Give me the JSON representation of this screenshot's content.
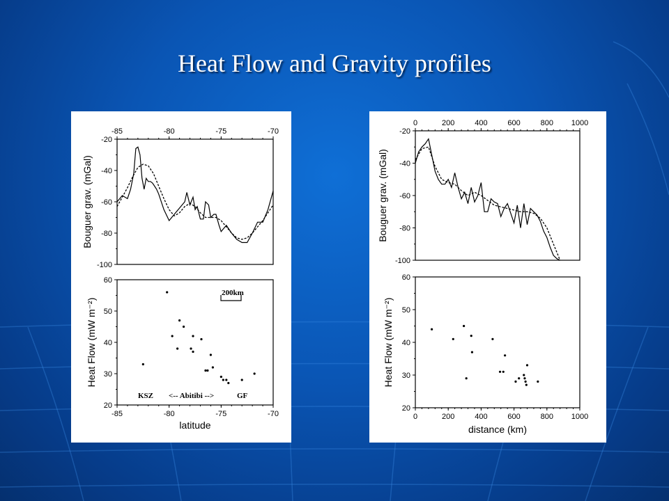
{
  "slide": {
    "title": "Heat Flow and Gravity profiles"
  },
  "colors": {
    "bg": "#0a55b4",
    "title": "#ffffff",
    "ink": "#000000"
  },
  "chart_data": [
    {
      "type": "line",
      "panel": "left-top",
      "ylabel": "Bouguer grav. (mGal)",
      "xlim": [
        -85,
        -70
      ],
      "ylim": [
        -100,
        -20
      ],
      "xticks": [
        "-85",
        "-80",
        "-75",
        "-70"
      ],
      "yticks": [
        "-20",
        "-40",
        "-60",
        "-80",
        "-100"
      ],
      "series": [
        {
          "style": "solid",
          "x": [
            -85,
            -84.5,
            -84.0,
            -83.7,
            -83.4,
            -83.2,
            -83.0,
            -82.8,
            -82.6,
            -82.4,
            -82.2,
            -82.0,
            -81.8,
            -81.6,
            -81.4,
            -81.2,
            -81.0,
            -80.5,
            -80.0,
            -79.5,
            -79.0,
            -78.5,
            -78.3,
            -78.0,
            -77.7,
            -77.5,
            -77.3,
            -77.0,
            -76.7,
            -76.5,
            -76.2,
            -76.0,
            -75.7,
            -75.5,
            -75.2,
            -75.0,
            -74.5,
            -74.0,
            -73.5,
            -73.0,
            -72.5,
            -72.0,
            -71.5,
            -71.0,
            -70.5,
            -70.0
          ],
          "y": [
            -60,
            -56,
            -58,
            -52,
            -42,
            -26,
            -25,
            -30,
            -45,
            -52,
            -45,
            -47,
            -47,
            -48,
            -50,
            -52,
            -55,
            -65,
            -72,
            -68,
            -64,
            -60,
            -54,
            -62,
            -57,
            -65,
            -63,
            -71,
            -71,
            -60,
            -62,
            -70,
            -68,
            -68,
            -75,
            -79,
            -75,
            -80,
            -84,
            -86,
            -86,
            -80,
            -73,
            -73,
            -65,
            -53
          ]
        },
        {
          "style": "dashed",
          "x": [
            -85,
            -84.5,
            -84.0,
            -83.5,
            -83.0,
            -82.5,
            -82.0,
            -81.5,
            -81.0,
            -80.5,
            -80.0,
            -79.5,
            -79.0,
            -78.5,
            -78.0,
            -77.5,
            -77.0,
            -76.5,
            -76.0,
            -75.5,
            -75.0,
            -74.5,
            -74.0,
            -73.5,
            -73.0,
            -72.5,
            -72.0,
            -71.5,
            -71.0,
            -70.5,
            -70.0
          ],
          "y": [
            -63,
            -57,
            -51,
            -44,
            -38,
            -36,
            -37,
            -42,
            -50,
            -58,
            -65,
            -69,
            -67,
            -63,
            -61,
            -63,
            -67,
            -70,
            -70,
            -70,
            -72,
            -76,
            -80,
            -83,
            -84,
            -83,
            -80,
            -76,
            -72,
            -67,
            -62
          ]
        }
      ]
    },
    {
      "type": "scatter",
      "panel": "left-bottom",
      "ylabel": "Heat Flow (mW m⁻²)",
      "xlabel": "latitude",
      "xlim": [
        -85,
        -70
      ],
      "ylim": [
        20,
        60
      ],
      "xticks": [
        "-85",
        "-80",
        "-75",
        "-70"
      ],
      "yticks": [
        "60",
        "50",
        "40",
        "30",
        "20"
      ],
      "scalebar": {
        "label": "200km"
      },
      "annotations": [
        {
          "text": "KSZ"
        },
        {
          "text": "<-- Abitibi -->"
        },
        {
          "text": "GF"
        }
      ],
      "points": [
        [
          -82.5,
          33
        ],
        [
          -80.2,
          56
        ],
        [
          -79.7,
          42
        ],
        [
          -79.2,
          38
        ],
        [
          -79.0,
          47
        ],
        [
          -78.6,
          45
        ],
        [
          -77.9,
          38
        ],
        [
          -77.7,
          37
        ],
        [
          -77.7,
          42
        ],
        [
          -76.9,
          41
        ],
        [
          -76.5,
          31
        ],
        [
          -76.3,
          31
        ],
        [
          -76.0,
          36
        ],
        [
          -75.8,
          32
        ],
        [
          -75.0,
          29
        ],
        [
          -74.8,
          28
        ],
        [
          -74.5,
          28
        ],
        [
          -74.3,
          27
        ],
        [
          -73.0,
          28
        ],
        [
          -71.8,
          30
        ]
      ]
    },
    {
      "type": "line",
      "panel": "right-top",
      "ylabel": "Bouguer grav. (mGal)",
      "xlim": [
        0,
        1000
      ],
      "ylim": [
        -100,
        -20
      ],
      "xticks": [
        "0",
        "200",
        "400",
        "600",
        "800",
        "1000"
      ],
      "yticks": [
        "-20",
        "-40",
        "-60",
        "-80",
        "-100"
      ],
      "series": [
        {
          "style": "solid",
          "x": [
            0,
            20,
            40,
            60,
            80,
            100,
            120,
            140,
            160,
            180,
            200,
            220,
            240,
            260,
            280,
            300,
            320,
            340,
            360,
            380,
            400,
            420,
            440,
            460,
            480,
            500,
            520,
            540,
            560,
            580,
            600,
            620,
            640,
            660,
            680,
            700,
            720,
            740,
            760,
            780,
            800,
            820,
            840,
            860,
            880
          ],
          "y": [
            -40,
            -33,
            -30,
            -28,
            -25,
            -35,
            -45,
            -50,
            -53,
            -53,
            -50,
            -55,
            -46,
            -55,
            -62,
            -58,
            -65,
            -55,
            -64,
            -60,
            -52,
            -70,
            -70,
            -62,
            -64,
            -65,
            -73,
            -68,
            -65,
            -71,
            -77,
            -66,
            -80,
            -65,
            -78,
            -68,
            -70,
            -72,
            -76,
            -82,
            -86,
            -92,
            -97,
            -99,
            -100
          ]
        },
        {
          "style": "dashed",
          "x": [
            0,
            40,
            80,
            120,
            160,
            200,
            240,
            280,
            320,
            360,
            400,
            440,
            480,
            520,
            560,
            600,
            640,
            680,
            720,
            760,
            800,
            840,
            880
          ],
          "y": [
            -38,
            -31,
            -30,
            -42,
            -50,
            -52,
            -53,
            -57,
            -60,
            -58,
            -60,
            -63,
            -66,
            -67,
            -68,
            -69,
            -70,
            -70,
            -71,
            -74,
            -80,
            -90,
            -100
          ]
        }
      ]
    },
    {
      "type": "scatter",
      "panel": "right-bottom",
      "ylabel": "Heat Flow (mW m⁻²)",
      "xlabel": "distance (km)",
      "xlim": [
        0,
        1000
      ],
      "ylim": [
        20,
        60
      ],
      "xticks": [
        "0",
        "200",
        "400",
        "600",
        "800",
        "1000"
      ],
      "yticks": [
        "20",
        "30",
        "40",
        "50",
        "60"
      ],
      "points": [
        [
          100,
          44
        ],
        [
          230,
          41
        ],
        [
          295,
          45
        ],
        [
          310,
          29
        ],
        [
          340,
          42
        ],
        [
          345,
          37
        ],
        [
          470,
          41
        ],
        [
          515,
          31
        ],
        [
          535,
          31
        ],
        [
          545,
          36
        ],
        [
          610,
          28
        ],
        [
          630,
          29
        ],
        [
          660,
          30
        ],
        [
          665,
          29
        ],
        [
          670,
          28
        ],
        [
          675,
          27
        ],
        [
          680,
          33
        ],
        [
          745,
          28
        ]
      ]
    }
  ]
}
